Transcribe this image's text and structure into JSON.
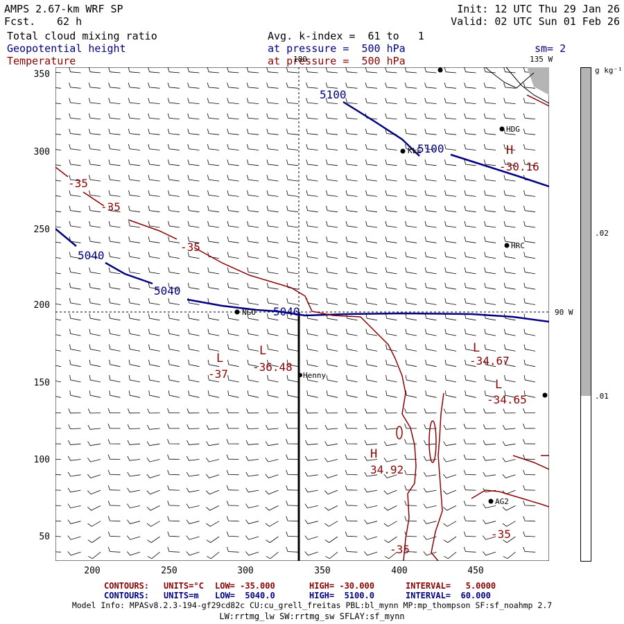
{
  "header": {
    "model": "AMPS 2.67-km WRF SP",
    "fcst_label": "Fcst.",
    "fcst_value": "62 h",
    "init": "Init: 12 UTC Thu 29 Jan 26",
    "valid": "Valid: 02 UTC Sun 01 Feb 26",
    "field1": "Total cloud mixing ratio",
    "field2": "Geopotential height",
    "field3": "Temperature",
    "avg": "Avg. k-index =  61 to   1",
    "pressure1": "at pressure =  500 hPa",
    "pressure2": "at pressure =  500 hPa",
    "sm": "sm= 2"
  },
  "colors": {
    "height": "#000080",
    "temperature": "#8b0000",
    "cloud": "#b4b4b4"
  },
  "map": {
    "xticks": [
      "200",
      "250",
      "300",
      "350",
      "400",
      "450"
    ],
    "yticks": [
      "350",
      "300",
      "250",
      "200",
      "150",
      "100",
      "50"
    ],
    "lon_labels": [
      "180",
      "135 W",
      "90 W"
    ],
    "stations": [
      "HDG",
      "KLE",
      "HRC",
      "Henny",
      "AG2",
      "NGO"
    ],
    "height_labels": [
      "5100",
      "5100",
      "5040",
      "5040",
      "5040"
    ],
    "temp_labels": [
      "-35",
      "-35",
      "-35",
      "-30.16",
      "-37",
      "-36.48",
      "-34.67",
      "-34.65",
      "34.92",
      "-35"
    ],
    "highs_lows": [
      "H",
      "L",
      "L",
      "L",
      "L",
      "H"
    ]
  },
  "colorbar": {
    "unit": "g kg⁻¹",
    "ticks": [
      ".02",
      ".01"
    ]
  },
  "footer": {
    "c1_label": "CONTOURS:",
    "c1_units": "UNITS=°C",
    "c1_low": "LOW= -35.000",
    "c1_high": "HIGH= -30.000",
    "c1_int": "INTERVAL=   5.0000",
    "c2_label": "CONTOURS:",
    "c2_units": "UNITS=m",
    "c2_low": "LOW=  5040.0",
    "c2_high": "HIGH=  5100.0",
    "c2_int": "INTERVAL=  60.000",
    "info1": "Model Info: MPASv8.2.3-194-gf29cd82c CU:cu_grell_freitas PBL:bl_mynn MP:mp_thompson SF:sf_noahmp 2.7",
    "info2": "LW:rrtmg_lw SW:rrtmg_sw SFLAY:sf_mynn"
  }
}
